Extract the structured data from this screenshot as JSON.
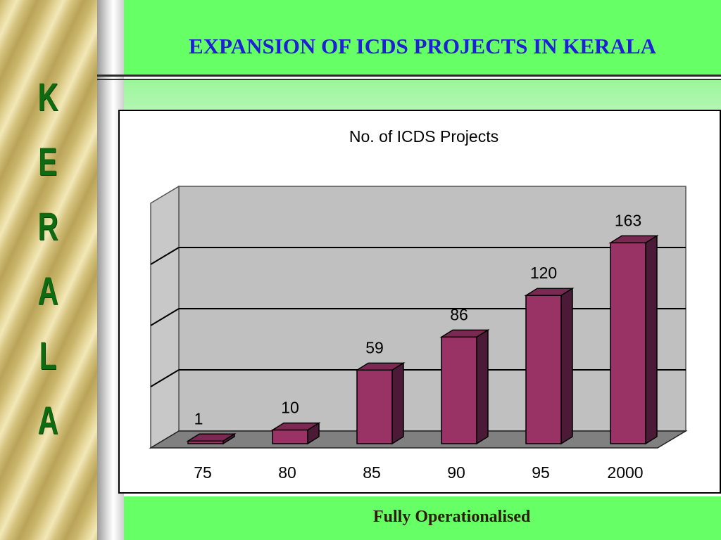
{
  "sidebar": {
    "letters": [
      "K",
      "E",
      "R",
      "A",
      "L",
      "A"
    ]
  },
  "header": {
    "title": "EXPANSION OF ICDS PROJECTS IN KERALA"
  },
  "footer": {
    "text": "Fully Operationalised"
  },
  "chart_data": {
    "type": "bar",
    "title": "No. of ICDS Projects",
    "xlabel": "",
    "ylabel": "",
    "categories": [
      "75",
      "80",
      "85",
      "90",
      "95",
      "2000"
    ],
    "values": [
      1,
      10,
      59,
      86,
      120,
      163
    ],
    "ylim": [
      0,
      200
    ],
    "grid": true,
    "legend": "none",
    "colors": {
      "bar": "#993366",
      "bar_side": "#4a1a36",
      "bar_top": "#7a2a52",
      "wall": "#c0c0c0",
      "floor": "#808080"
    }
  }
}
